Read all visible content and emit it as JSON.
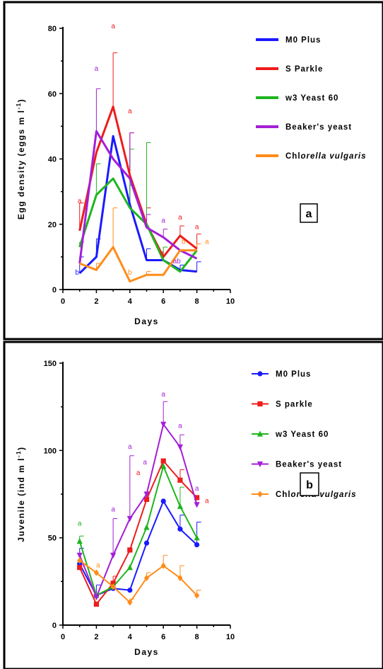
{
  "colors": {
    "M0 Plus": "#1a1aff",
    "S Parkle": "#ee1c1c",
    "w3 Yeast 60": "#1fb51f",
    "Beaker's yeast": "#a41fd6",
    "Chlorella vulgaris": "#ff8c1a"
  },
  "chart_data": [
    {
      "type": "line",
      "panel_label": "a",
      "xlabel": "Days",
      "ylabel": "Egg density  (eggs ml-1)",
      "ylabel_main": "Egg density  (eggs m l",
      "ylabel_sup": "-1",
      "ylabel_end": ")",
      "xlim": [
        0,
        10
      ],
      "ylim": [
        0,
        80
      ],
      "xticks": [
        "0",
        "2",
        "4",
        "6",
        "8",
        "10"
      ],
      "yticks": [
        "0",
        "20",
        "40",
        "60",
        "80"
      ],
      "x": [
        1,
        2,
        3,
        4,
        5,
        6,
        7,
        8
      ],
      "series": [
        {
          "name": "M0 Plus",
          "legend": "M0 Plus",
          "values": [
            5,
            10,
            47,
            26,
            9,
            9,
            6,
            5.5
          ],
          "err": [
            5,
            5.5,
            0,
            6,
            3.5,
            0,
            1.5,
            3
          ],
          "markers": false
        },
        {
          "name": "S Parkle",
          "legend": "S Parkle",
          "values": [
            18,
            42,
            56,
            35,
            20,
            10,
            16.5,
            12.5
          ],
          "err": [
            8.5,
            0,
            16.5,
            13,
            5,
            0,
            3,
            4.5
          ],
          "markers": false
        },
        {
          "name": "w3 Yeast 60",
          "legend": "w3 Yeast 60",
          "values": [
            13,
            29,
            34,
            25,
            20,
            9,
            5.5,
            12
          ],
          "err": [
            1.5,
            9.5,
            0,
            18,
            25,
            4,
            0,
            0
          ],
          "markers": false
        },
        {
          "name": "Beaker's yeast",
          "legend": "Beaker's yeast",
          "values": [
            8,
            48.5,
            40,
            34,
            19,
            16,
            12,
            9.5
          ],
          "err": [
            0,
            13,
            0,
            14,
            4,
            2.5,
            0,
            0
          ],
          "markers": false
        },
        {
          "name": "Chlorella vulgaris",
          "legend_plain": "Chl",
          "legend_ital": "orella vulgaris",
          "values": [
            8,
            6,
            13,
            2.5,
            4.5,
            4.5,
            12,
            12
          ],
          "err": [
            0,
            2,
            12,
            0,
            1,
            0,
            0,
            2
          ],
          "markers": false
        }
      ],
      "annotations": [
        {
          "text": "a",
          "x": 1,
          "y": 26.5,
          "series": "S Parkle"
        },
        {
          "text": "b",
          "x": 0.85,
          "y": 4.5,
          "series": "M0 Plus"
        },
        {
          "text": "a",
          "x": 2,
          "y": 67,
          "series": "Beaker's yeast"
        },
        {
          "text": "a",
          "x": 3,
          "y": 80,
          "series": "S Parkle"
        },
        {
          "text": "a",
          "x": 4,
          "y": 54,
          "series": "S Parkle"
        },
        {
          "text": "b",
          "x": 4,
          "y": 4.5,
          "series": "Chlorella vulgaris"
        },
        {
          "text": "a",
          "x": 6,
          "y": 20.5,
          "series": "Beaker's yeast"
        },
        {
          "text": "b",
          "x": 5.9,
          "y": 10.5,
          "series": "S Parkle"
        },
        {
          "text": "a",
          "x": 7,
          "y": 21.5,
          "series": "S Parkle"
        },
        {
          "text": "b",
          "x": 7.2,
          "y": 14,
          "series": "Chlorella vulgaris"
        },
        {
          "text": "ab",
          "x": 6.8,
          "y": 8,
          "series": "Beaker's yeast"
        },
        {
          "text": "a",
          "x": 8,
          "y": 18.5,
          "series": "S Parkle"
        },
        {
          "text": "a",
          "x": 8.6,
          "y": 14,
          "series": "Chlorella vulgaris"
        }
      ]
    },
    {
      "type": "line",
      "panel_label": "b",
      "xlabel": "Days",
      "ylabel": "Juvenile (ind ml-1)",
      "ylabel_main": "Juvenile (ind m l",
      "ylabel_sup": "-1",
      "ylabel_end": ")",
      "xlim": [
        0,
        10
      ],
      "ylim": [
        0,
        150
      ],
      "xticks": [
        "0",
        "2",
        "4",
        "6",
        "8",
        "10"
      ],
      "yticks": [
        "0",
        "50",
        "100",
        "150"
      ],
      "x": [
        1,
        2,
        3,
        4,
        5,
        6,
        7,
        8
      ],
      "series": [
        {
          "name": "M0 Plus",
          "legend": "M0 Plus",
          "marker": "circle",
          "values": [
            35,
            17,
            21,
            20,
            47,
            71,
            55,
            46
          ],
          "err": [
            9,
            6,
            0,
            0,
            0,
            0,
            8,
            13
          ],
          "markers": true
        },
        {
          "name": "S parkle",
          "legend": "S parkle",
          "marker": "square",
          "values": [
            33,
            12,
            24,
            43,
            72,
            94,
            83,
            73
          ],
          "err": [
            0,
            0,
            4,
            0,
            0,
            0,
            6,
            0
          ],
          "markers": true
        },
        {
          "name": "w3 Yeast 60",
          "legend": "w3 Yeast 60",
          "marker": "triangle",
          "values": [
            48,
            17,
            22,
            33,
            56,
            91,
            68,
            50
          ],
          "err": [
            3,
            0,
            0,
            0,
            0,
            0,
            11,
            0
          ],
          "markers": true
        },
        {
          "name": "Beaker's yeast",
          "legend": "Beaker's yeast",
          "marker": "tri-down",
          "values": [
            40,
            16,
            40,
            61,
            75,
            115,
            102,
            69
          ],
          "err": [
            0,
            0,
            21,
            36,
            0,
            13,
            7,
            0
          ],
          "markers": true
        },
        {
          "name": "Chlorella vulgaris",
          "legend_plain": "Chl",
          "legend_ital": "orella vulgaris",
          "marker": "diamond",
          "values": [
            37,
            30,
            22,
            13,
            27,
            34,
            27,
            17
          ],
          "err": [
            0,
            0,
            0,
            2,
            3,
            6,
            7,
            3
          ],
          "markers": true
        }
      ],
      "annotations": [
        {
          "text": "a",
          "x": 1,
          "y": 57,
          "series": "w3 Yeast 60"
        },
        {
          "text": "a",
          "x": 2.1,
          "y": 33,
          "series": "Chlorella vulgaris"
        },
        {
          "text": "a",
          "x": 3,
          "y": 65,
          "series": "Beaker's yeast"
        },
        {
          "text": "a",
          "x": 4,
          "y": 101,
          "series": "Beaker's yeast"
        },
        {
          "text": "a",
          "x": 4.9,
          "y": 92,
          "series": "Beaker's yeast"
        },
        {
          "text": "a",
          "x": 4.5,
          "y": 86,
          "series": "S parkle"
        },
        {
          "text": "a",
          "x": 6,
          "y": 131,
          "series": "Beaker's yeast"
        },
        {
          "text": "a",
          "x": 7,
          "y": 113,
          "series": "Beaker's yeast"
        },
        {
          "text": "a",
          "x": 8,
          "y": 77,
          "series": "Beaker's yeast"
        },
        {
          "text": "a",
          "x": 8.6,
          "y": 70,
          "series": "S parkle"
        }
      ]
    }
  ]
}
